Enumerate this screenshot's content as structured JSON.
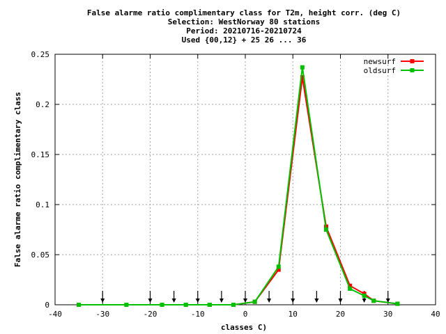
{
  "chart_data": {
    "type": "line",
    "title": [
      "False alarme ratio complimentary class  for T2m, height corr. (deg C)",
      "Selection: WestNorway     80 stations",
      "Period: 20210716-20210724",
      "Used {00,12} + 25 26 ... 36"
    ],
    "xlabel": "classes C)",
    "ylabel": "False alarme ratio complimentary class",
    "xlim": [
      -40,
      40
    ],
    "ylim": [
      0,
      0.25
    ],
    "xticks": [
      -40,
      -30,
      -20,
      -10,
      0,
      10,
      20,
      30,
      40
    ],
    "yticks": [
      0,
      0.05,
      0.1,
      0.15,
      0.2,
      0.25
    ],
    "ytick_labels": [
      "0",
      "0.05",
      "0.1",
      "0.15",
      "0.2",
      "0.25"
    ],
    "grid": true,
    "legend_position": "top-right",
    "class_marker_x": [
      -30,
      -20,
      -15,
      -10,
      -5,
      0,
      5,
      10,
      15,
      20,
      25,
      30
    ],
    "series": [
      {
        "name": "newsurf",
        "color": "#ff0000",
        "x": [
          -35,
          -25,
          -17.5,
          -12.5,
          -7.5,
          -2.5,
          2,
          7,
          12,
          17,
          22,
          25,
          27,
          32
        ],
        "y": [
          0,
          0,
          0,
          0,
          0,
          0,
          0.003,
          0.035,
          0.227,
          0.078,
          0.019,
          0.011,
          0.004,
          0.001
        ]
      },
      {
        "name": "oldsurf",
        "color": "#00c000",
        "x": [
          -35,
          -25,
          -17.5,
          -12.5,
          -7.5,
          -2.5,
          2,
          7,
          12,
          17,
          22,
          25,
          27,
          32
        ],
        "y": [
          0,
          0,
          0,
          0,
          0,
          0,
          0.003,
          0.038,
          0.237,
          0.075,
          0.016,
          0.009,
          0.004,
          0.001
        ]
      }
    ]
  }
}
